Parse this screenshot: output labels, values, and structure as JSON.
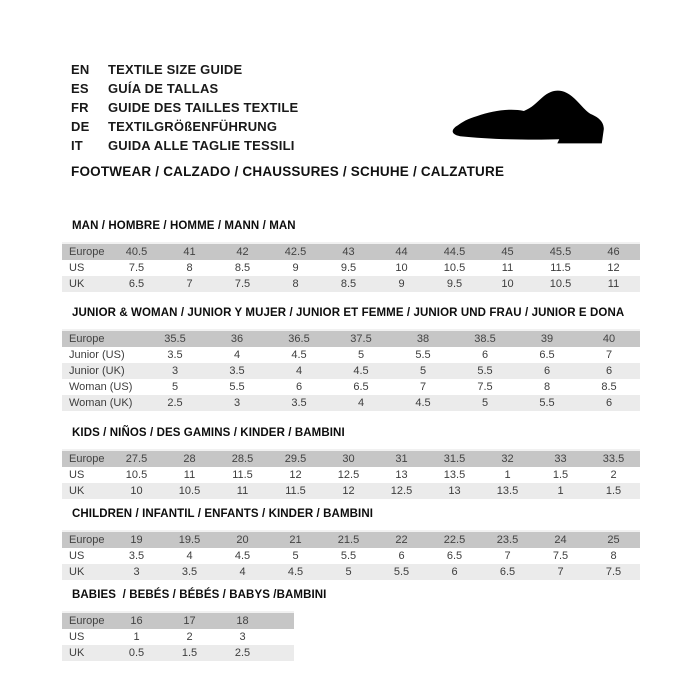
{
  "header": {
    "languages": [
      {
        "code": "EN",
        "label": "TEXTILE SIZE GUIDE"
      },
      {
        "code": "ES",
        "label": "GUÍA DE TALLAS"
      },
      {
        "code": "FR",
        "label": "GUIDE DES TAILLES TEXTILE"
      },
      {
        "code": "DE",
        "label": "TEXTILGRÖßENFÜHRUNG"
      },
      {
        "code": "IT",
        "label": "GUIDA ALLE TAGLIE TESSILI"
      }
    ],
    "category_line": "FOOTWEAR / CALZADO / CHAUSSURES / SCHUHE / CALZATURE",
    "shoe_icon": "dress-shoe-silhouette"
  },
  "colors": {
    "header_row_bg": "#c6c6c6",
    "alt_row_bg": "#ebebeb",
    "cell_text": "#3d3d3d",
    "title_text": "#0d0d0d",
    "shoe": "#000000"
  },
  "tables": [
    {
      "id": "man",
      "title": "MAN / HOMBRE / HOMME / MANN / MAN",
      "header": [
        "Europe",
        "40.5",
        "41",
        "42",
        "42.5",
        "43",
        "44",
        "44.5",
        "45",
        "45.5",
        "46"
      ],
      "rows": [
        [
          "US",
          "7.5",
          "8",
          "8.5",
          "9",
          "9.5",
          "10",
          "10.5",
          "11",
          "11.5",
          "12"
        ],
        [
          "UK",
          "6.5",
          "7",
          "7.5",
          "8",
          "8.5",
          "9",
          "9.5",
          "10",
          "10.5",
          "11"
        ]
      ]
    },
    {
      "id": "junior-woman",
      "title": "JUNIOR & WOMAN / JUNIOR Y MUJER / JUNIOR ET FEMME / JUNIOR UND FRAU / JUNIOR E DONA",
      "header": [
        "Europe",
        "35.5",
        "36",
        "36.5",
        "37.5",
        "38",
        "38.5",
        "39",
        "40"
      ],
      "rows": [
        [
          "Junior (US)",
          "3.5",
          "4",
          "4.5",
          "5",
          "5.5",
          "6",
          "6.5",
          "7"
        ],
        [
          "Junior (UK)",
          "3",
          "3.5",
          "4",
          "4.5",
          "5",
          "5.5",
          "6",
          "6"
        ],
        [
          "Woman (US)",
          "5",
          "5.5",
          "6",
          "6.5",
          "7",
          "7.5",
          "8",
          "8.5"
        ],
        [
          "Woman (UK)",
          "2.5",
          "3",
          "3.5",
          "4",
          "4.5",
          "5",
          "5.5",
          "6"
        ]
      ]
    },
    {
      "id": "kids",
      "title": "KIDS / NIÑOS / DES GAMINS / KINDER / BAMBINI",
      "header": [
        "Europe",
        "27.5",
        "28",
        "28.5",
        "29.5",
        "30",
        "31",
        "31.5",
        "32",
        "33",
        "33.5"
      ],
      "rows": [
        [
          "US",
          "10.5",
          "11",
          "11.5",
          "12",
          "12.5",
          "13",
          "13.5",
          "1",
          "1.5",
          "2"
        ],
        [
          "UK",
          "10",
          "10.5",
          "11",
          "11.5",
          "12",
          "12.5",
          "13",
          "13.5",
          "1",
          "1.5"
        ]
      ]
    },
    {
      "id": "children",
      "title": "CHILDREN / INFANTIL / ENFANTS / KINDER / BAMBINI",
      "header": [
        "Europe",
        "19",
        "19.5",
        "20",
        "21",
        "21.5",
        "22",
        "22.5",
        "23.5",
        "24",
        "25"
      ],
      "rows": [
        [
          "US",
          "3.5",
          "4",
          "4.5",
          "5",
          "5.5",
          "6",
          "6.5",
          "7",
          "7.5",
          "8"
        ],
        [
          "UK",
          "3",
          "3.5",
          "4",
          "4.5",
          "5",
          "5.5",
          "6",
          "6.5",
          "7",
          "7.5"
        ]
      ]
    },
    {
      "id": "babies",
      "title": "BABIES  / BEBÉS / BÉBÉS / BABYS /BAMBINI",
      "header": [
        "Europe",
        "16",
        "17",
        "18"
      ],
      "rows": [
        [
          "US",
          "1",
          "2",
          "3"
        ],
        [
          "UK",
          "0.5",
          "1.5",
          "2.5"
        ]
      ]
    }
  ]
}
